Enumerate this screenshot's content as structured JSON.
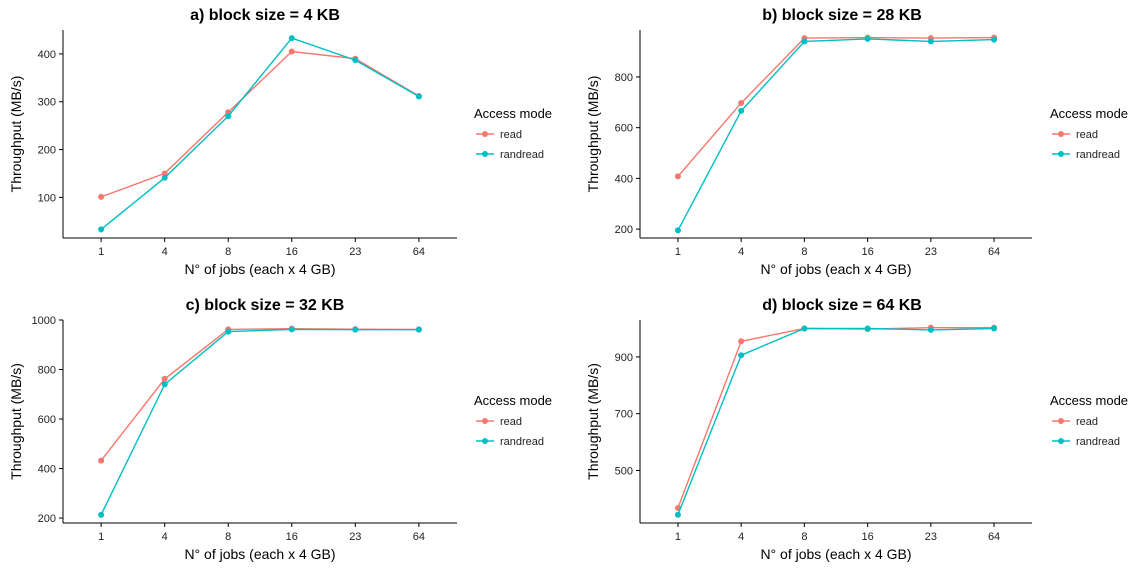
{
  "chart_data": [
    {
      "type": "line",
      "title": "a) block size = 4 KB",
      "xlabel": "N° of jobs (each x 4 GB)",
      "ylabel": "Throughput (MB/s)",
      "categories": [
        "1",
        "4",
        "8",
        "16",
        "23",
        "64"
      ],
      "yticks": [
        100,
        200,
        300,
        400
      ],
      "ylim": [
        15,
        450
      ],
      "grid": false,
      "legend": {
        "title": "Access mode",
        "position": "right"
      },
      "series": [
        {
          "name": "read",
          "color": "#F8766D",
          "values": [
            101,
            150,
            278,
            405,
            390,
            312
          ]
        },
        {
          "name": "randread",
          "color": "#00BFC4",
          "values": [
            33,
            141,
            270,
            433,
            387,
            311
          ]
        }
      ]
    },
    {
      "type": "line",
      "title": "b) block size = 28 KB",
      "xlabel": "N° of jobs (each x 4 GB)",
      "ylabel": "Throughput (MB/s)",
      "categories": [
        "1",
        "4",
        "8",
        "16",
        "23",
        "64"
      ],
      "yticks": [
        200,
        400,
        600,
        800
      ],
      "ylim": [
        165,
        985
      ],
      "grid": false,
      "legend": {
        "title": "Access mode",
        "position": "right"
      },
      "series": [
        {
          "name": "read",
          "color": "#F8766D",
          "values": [
            408,
            697,
            953,
            955,
            953,
            955
          ]
        },
        {
          "name": "randread",
          "color": "#00BFC4",
          "values": [
            195,
            666,
            940,
            950,
            940,
            947
          ]
        }
      ]
    },
    {
      "type": "line",
      "title": "c) block size = 32 KB",
      "xlabel": "N° of jobs (each x 4 GB)",
      "ylabel": "Throughput (MB/s)",
      "categories": [
        "1",
        "4",
        "8",
        "16",
        "23",
        "64"
      ],
      "yticks": [
        200,
        400,
        600,
        800,
        1000
      ],
      "ylim": [
        180,
        1000
      ],
      "grid": false,
      "legend": {
        "title": "Access mode",
        "position": "right"
      },
      "series": [
        {
          "name": "read",
          "color": "#F8766D",
          "values": [
            432,
            762,
            962,
            965,
            963,
            962
          ]
        },
        {
          "name": "randread",
          "color": "#00BFC4",
          "values": [
            213,
            740,
            953,
            962,
            961,
            961
          ]
        }
      ]
    },
    {
      "type": "line",
      "title": "d) block size = 64 KB",
      "xlabel": "N° of jobs (each x 4 GB)",
      "ylabel": "Throughput (MB/s)",
      "categories": [
        "1",
        "4",
        "8",
        "16",
        "23",
        "64"
      ],
      "yticks": [
        500,
        700,
        900
      ],
      "ylim": [
        315,
        1030
      ],
      "grid": false,
      "legend": {
        "title": "Access mode",
        "position": "right"
      },
      "series": [
        {
          "name": "read",
          "color": "#F8766D",
          "values": [
            368,
            955,
            1000,
            998,
            1003,
            1003
          ]
        },
        {
          "name": "randread",
          "color": "#00BFC4",
          "values": [
            344,
            906,
            1000,
            1000,
            995,
            1000
          ]
        }
      ]
    }
  ]
}
